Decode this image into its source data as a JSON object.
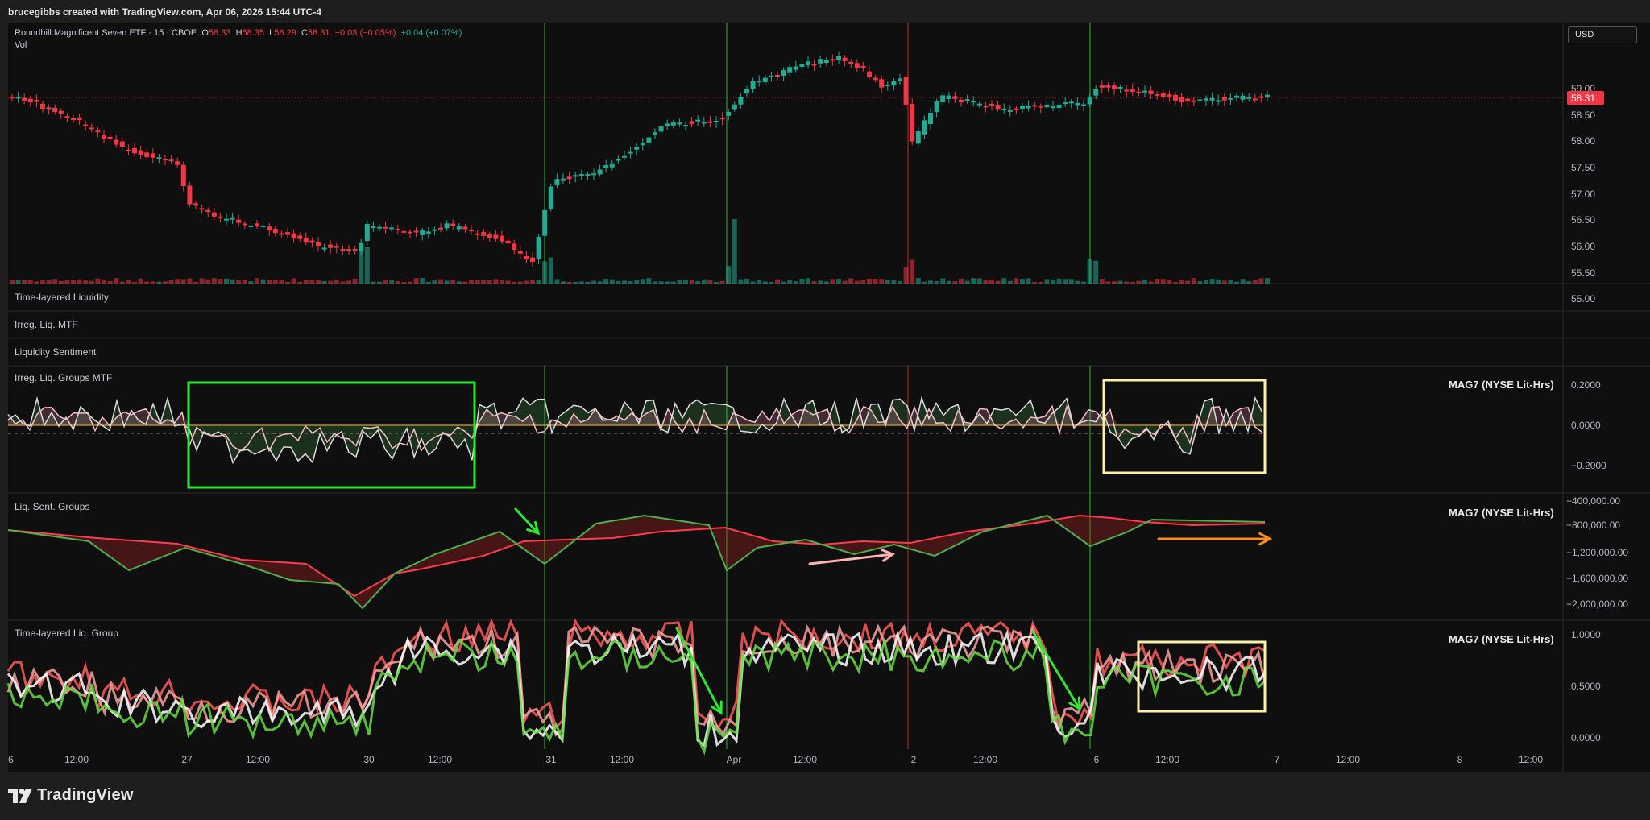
{
  "header": {
    "credit": "brucegibbs created with TradingView.com, Apr 06, 2026 15:44 UTC-4"
  },
  "legend": {
    "symbol": "Roundhill Magnificent Seven ETF · 15 · CBOE",
    "o_label": "O",
    "o": "58.33",
    "h_label": "H",
    "h": "58.35",
    "l_label": "L",
    "l": "58.29",
    "c_label": "C",
    "c": "58.31",
    "change": "−0.03 (−0.05%)",
    "ext_change": "+0.04 (+0.07%)",
    "vol_label": "Vol"
  },
  "currency_button": "USD",
  "last_price": "58.31",
  "colors": {
    "up": "#22ab94",
    "down": "#f23645",
    "bg": "#0f0f0f",
    "accent_green": "#2eea2e",
    "accent_yellow": "#fff0a8",
    "accent_orange": "#ff8c1a",
    "accent_pink": "#ffb3b3"
  },
  "panes": {
    "time_layered_liquidity": "Time-layered Liquidity",
    "irreg_liq_mtf": "Irreg. Liq. MTF",
    "liquidity_sentiment": "Liquidity Sentiment",
    "irreg_groups": {
      "title": "Irreg. Liq. Groups MTF",
      "tag": "MAG7 (NYSE Lit-Hrs)",
      "ticks": [
        "0.2000",
        "0.0000",
        "−0.2000"
      ]
    },
    "sent_groups": {
      "title": "Liq. Sent. Groups",
      "tag": "MAG7 (NYSE Lit-Hrs)",
      "ticks": [
        "−400,000.00",
        "−800,000.00",
        "−1,200,000.00",
        "−1,600,000.00",
        "−2,000,000.00"
      ]
    },
    "time_layered_group": {
      "title": "Time-layered Liq. Group",
      "tag": "MAG7 (NYSE Lit-Hrs)",
      "ticks": [
        "1.0000",
        "0.5000",
        "0.0000"
      ]
    }
  },
  "price_axis": [
    "59.00",
    "58.50",
    "58.00",
    "57.50",
    "57.00",
    "56.50",
    "56.00",
    "55.50",
    "55.00"
  ],
  "time_axis": [
    "6",
    "12:00",
    "27",
    "12:00",
    "30",
    "12:00",
    "31",
    "12:00",
    "Apr",
    "12:00",
    "2",
    "12:00",
    "6",
    "12:00",
    "7",
    "12:00",
    "8",
    "12:00"
  ],
  "branding": {
    "logo_icon": "tradingview-logo-icon",
    "logo_text": "TradingView"
  }
}
